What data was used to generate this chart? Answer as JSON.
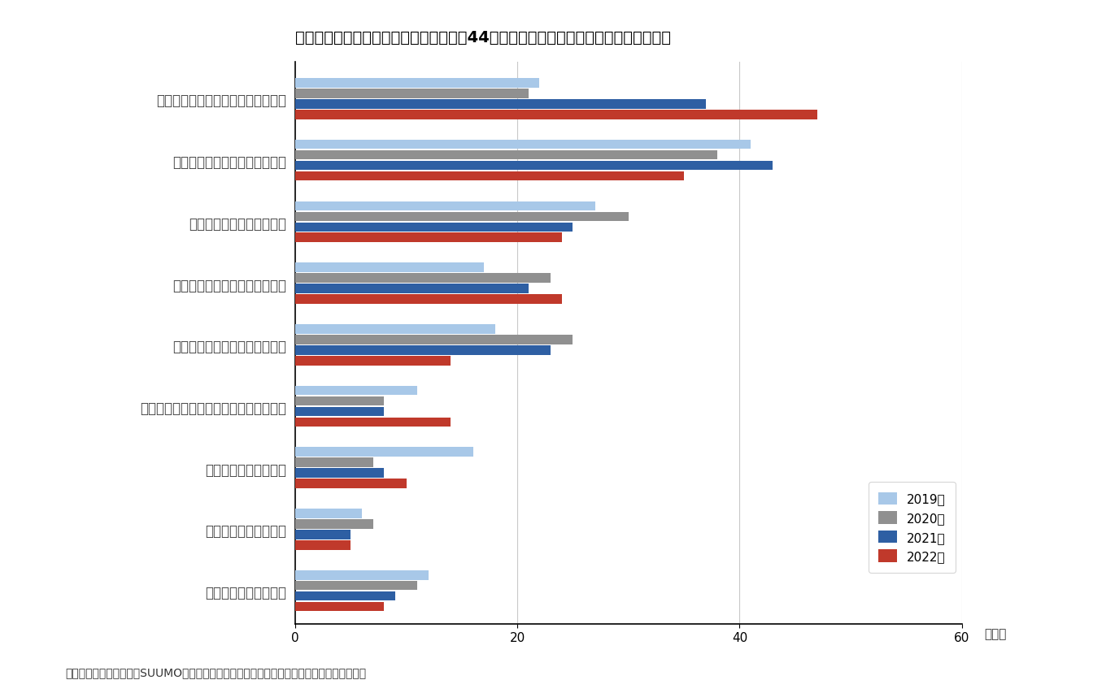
{
  "title": "図表６　住宅が「買い時だ」と答えた人44％が、そのように思った理由（複数回答）",
  "categories": [
    "これからは、住宅価格が上昇しそう",
    "いまは、住宅ローン金利が安い",
    "いまは、住宅価格がお手頃",
    "いまは、いい物件がでていそう",
    "いまは、住宅ローン減税が有利",
    "これからは、安定した収入がみこめそう",
    "いまは、消費税が有利",
    "いまは、相続税が有利",
    "あてはまるものはない"
  ],
  "series": {
    "2019年": [
      22,
      41,
      27,
      17,
      18,
      11,
      16,
      6,
      12
    ],
    "2020年": [
      21,
      38,
      30,
      23,
      25,
      8,
      7,
      7,
      11
    ],
    "2021年": [
      37,
      43,
      25,
      21,
      23,
      8,
      8,
      5,
      9
    ],
    "2022年": [
      47,
      35,
      24,
      24,
      14,
      14,
      10,
      5,
      8
    ]
  },
  "colors": {
    "2019年": "#a8c8e8",
    "2020年": "#909090",
    "2021年": "#2e5fa3",
    "2022年": "#c0392b"
  },
  "xlim": [
    0,
    60
  ],
  "xticks": [
    0,
    20,
    40,
    60
  ],
  "xlabel": "（％）",
  "source_text": "（資料）　リクルート（SUUMOリサーチセンター）の公表を基にニッセイ基礎研究所が作成",
  "background_color": "#ffffff",
  "grid_color": "#c8c8c8"
}
